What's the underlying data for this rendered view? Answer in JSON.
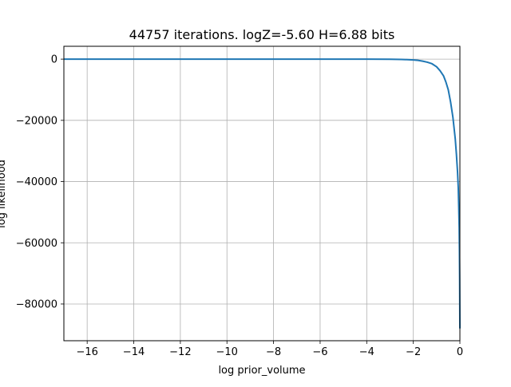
{
  "chart_data": {
    "type": "line",
    "title": "44757 iterations. logZ=-5.60 H=6.88 bits",
    "xlabel": "log prior_volume",
    "ylabel": "log likelihood",
    "xlim": [
      -17.0,
      0.0
    ],
    "ylim": [
      -92000,
      4200
    ],
    "grid": true,
    "xticks": [
      -16,
      -14,
      -12,
      -10,
      -8,
      -6,
      -4,
      -2,
      0
    ],
    "xtick_labels": [
      "−16",
      "−14",
      "−12",
      "−10",
      "−8",
      "−6",
      "−4",
      "−2",
      "0"
    ],
    "yticks": [
      0,
      -20000,
      -40000,
      -60000,
      -80000
    ],
    "ytick_labels": [
      "0",
      "−20000",
      "−40000",
      "−60000",
      "−80000"
    ],
    "colors": {
      "line": "#1f77b4",
      "grid": "#b0b0b0",
      "axes": "#000000"
    },
    "series": [
      {
        "x": [
          -17.0,
          -16.0,
          -14.0,
          -12.0,
          -10.0,
          -8.0,
          -6.0,
          -4.0,
          -3.0,
          -2.5,
          -2.0,
          -1.8,
          -1.6,
          -1.4,
          -1.2,
          -1.0,
          -0.85,
          -0.7,
          -0.6,
          -0.5,
          -0.4,
          -0.3,
          -0.2,
          -0.15,
          -0.1,
          -0.07,
          -0.05,
          -0.03,
          -0.02,
          -0.01,
          0.0
        ],
        "y": [
          0,
          0,
          0,
          0,
          0,
          0,
          0,
          -10,
          -40,
          -100,
          -250,
          -400,
          -650,
          -1000,
          -1500,
          -2500,
          -3800,
          -5500,
          -7500,
          -10000,
          -14000,
          -19000,
          -26000,
          -31000,
          -37000,
          -42000,
          -48000,
          -55000,
          -62000,
          -72000,
          -88000
        ]
      }
    ]
  }
}
